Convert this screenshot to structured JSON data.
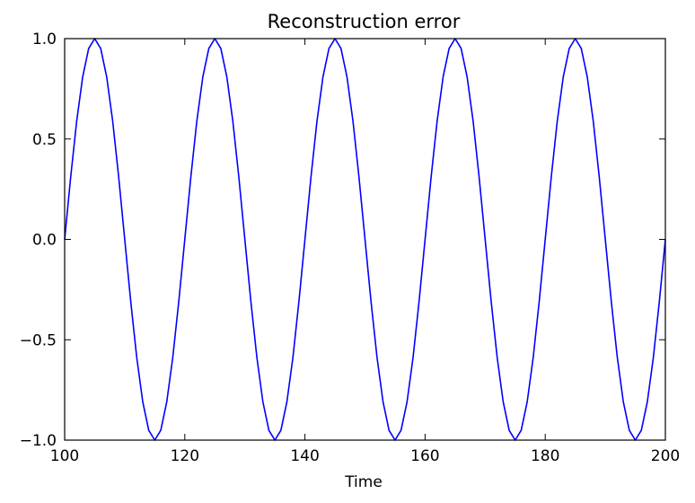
{
  "chart_data": {
    "type": "line",
    "title": "Reconstruction error",
    "xlabel": "Time",
    "ylabel": "",
    "xlim": [
      100,
      200
    ],
    "ylim": [
      -1.0,
      1.0
    ],
    "xticks": [
      100,
      120,
      140,
      160,
      180,
      200
    ],
    "xtick_labels": [
      "100",
      "120",
      "140",
      "160",
      "180",
      "200"
    ],
    "yticks": [
      1.0,
      0.5,
      0.0,
      -0.5,
      -1.0
    ],
    "ytick_labels": [
      "1.0",
      "0.5",
      "0.0",
      "−0.5",
      "−1.0"
    ],
    "grid": false,
    "series": [
      {
        "color": "#0000ff",
        "x": [
          100,
          101,
          102,
          103,
          104,
          105,
          106,
          107,
          108,
          109,
          110,
          111,
          112,
          113,
          114,
          115,
          116,
          117,
          118,
          119,
          120,
          121,
          122,
          123,
          124,
          125,
          126,
          127,
          128,
          129,
          130,
          131,
          132,
          133,
          134,
          135,
          136,
          137,
          138,
          139,
          140,
          141,
          142,
          143,
          144,
          145,
          146,
          147,
          148,
          149,
          150,
          151,
          152,
          153,
          154,
          155,
          156,
          157,
          158,
          159,
          160,
          161,
          162,
          163,
          164,
          165,
          166,
          167,
          168,
          169,
          170,
          171,
          172,
          173,
          174,
          175,
          176,
          177,
          178,
          179,
          180,
          181,
          182,
          183,
          184,
          185,
          186,
          187,
          188,
          189,
          190,
          191,
          192,
          193,
          194,
          195,
          196,
          197,
          198,
          199,
          200
        ],
        "y": [
          0.0,
          0.309,
          0.588,
          0.809,
          0.951,
          1.0,
          0.951,
          0.809,
          0.588,
          0.309,
          0.0,
          -0.309,
          -0.588,
          -0.809,
          -0.951,
          -1.0,
          -0.951,
          -0.809,
          -0.588,
          -0.309,
          0.0,
          0.309,
          0.588,
          0.809,
          0.951,
          1.0,
          0.951,
          0.809,
          0.588,
          0.309,
          0.0,
          -0.309,
          -0.588,
          -0.809,
          -0.951,
          -1.0,
          -0.951,
          -0.809,
          -0.588,
          -0.309,
          0.0,
          0.309,
          0.588,
          0.809,
          0.951,
          1.0,
          0.951,
          0.809,
          0.588,
          0.309,
          0.0,
          -0.309,
          -0.588,
          -0.809,
          -0.951,
          -1.0,
          -0.951,
          -0.809,
          -0.588,
          -0.309,
          0.0,
          0.309,
          0.588,
          0.809,
          0.951,
          1.0,
          0.951,
          0.809,
          0.588,
          0.309,
          0.0,
          -0.309,
          -0.588,
          -0.809,
          -0.951,
          -1.0,
          -0.951,
          -0.809,
          -0.588,
          -0.309,
          0.0,
          0.309,
          0.588,
          0.809,
          0.951,
          1.0,
          0.951,
          0.809,
          0.588,
          0.309,
          0.0,
          -0.309,
          -0.588,
          -0.809,
          -0.951,
          -1.0,
          -0.951,
          -0.809,
          -0.588,
          -0.309,
          0.0
        ]
      }
    ]
  }
}
